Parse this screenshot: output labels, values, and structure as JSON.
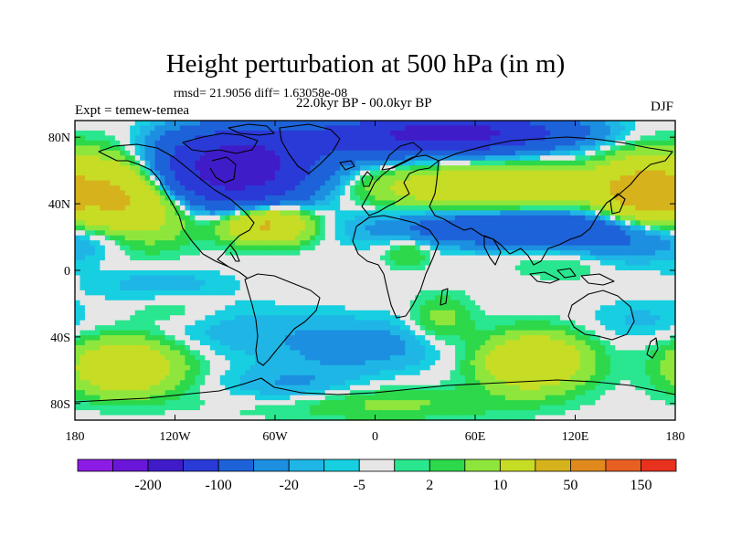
{
  "chart_data": {
    "type": "heatmap",
    "title": "Height perturbation at 500 hPa (in m)",
    "stats_text": "rmsd= 21.9056 diff= 1.63058e-08",
    "experiment_text": "Expt = temew-temea",
    "period_text": "22.0kyr BP - 00.0kyr BP",
    "season": "DJF",
    "xlim": [
      -180,
      180
    ],
    "ylim": [
      -90,
      90
    ],
    "x_ticks": [
      {
        "value": -180,
        "label": "180"
      },
      {
        "value": -120,
        "label": "120W"
      },
      {
        "value": -60,
        "label": "60W"
      },
      {
        "value": 0,
        "label": "0"
      },
      {
        "value": 60,
        "label": "60E"
      },
      {
        "value": 120,
        "label": "120E"
      },
      {
        "value": 180,
        "label": "180"
      }
    ],
    "y_ticks": [
      {
        "value": 80,
        "label": "80N"
      },
      {
        "value": 40,
        "label": "40N"
      },
      {
        "value": 0,
        "label": "0"
      },
      {
        "value": -40,
        "label": "40S"
      },
      {
        "value": -80,
        "label": "80S"
      }
    ],
    "colorbar": {
      "colors": [
        "#8c1be6",
        "#6a16d8",
        "#3f1cc8",
        "#2a3ad6",
        "#1d62d8",
        "#1c8fe0",
        "#1fb6e6",
        "#17cfe0",
        "#e6e6e6",
        "#29e68f",
        "#2dd84a",
        "#8ee63c",
        "#c7dc24",
        "#d6b21c",
        "#e08a1e",
        "#e85f24",
        "#e8321e"
      ],
      "labels": [
        {
          "after_index": 1,
          "text": "-200"
        },
        {
          "after_index": 3,
          "text": "-100"
        },
        {
          "after_index": 5,
          "text": "-20"
        },
        {
          "after_index": 7,
          "text": "-5"
        },
        {
          "after_index": 9,
          "text": "2"
        },
        {
          "after_index": 11,
          "text": "10"
        },
        {
          "after_index": 13,
          "text": "50"
        },
        {
          "after_index": 15,
          "text": "150"
        }
      ]
    },
    "field_blobs": [
      {
        "lon": -150,
        "lat": 45,
        "rlon": 38,
        "rlat": 25,
        "amp": 60
      },
      {
        "lon": 160,
        "lat": 45,
        "rlon": 25,
        "rlat": 22,
        "amp": 55
      },
      {
        "lon": -85,
        "lat": 60,
        "rlon": 45,
        "rlat": 20,
        "amp": -140
      },
      {
        "lon": -20,
        "lat": 78,
        "rlon": 80,
        "rlat": 12,
        "amp": -40
      },
      {
        "lon": 50,
        "lat": 83,
        "rlon": 60,
        "rlat": 10,
        "amp": -110
      },
      {
        "lon": -65,
        "lat": 28,
        "rlon": 25,
        "rlat": 11,
        "amp": 60
      },
      {
        "lon": 75,
        "lat": 50,
        "rlon": 75,
        "rlat": 12,
        "amp": 45
      },
      {
        "lon": 80,
        "lat": 25,
        "rlon": 70,
        "rlat": 10,
        "amp": -45
      },
      {
        "lon": 150,
        "lat": 20,
        "rlon": 40,
        "rlat": 15,
        "amp": -25
      },
      {
        "lon": -165,
        "lat": 18,
        "rlon": 25,
        "rlat": 12,
        "amp": -10
      },
      {
        "lon": -130,
        "lat": -8,
        "rlon": 40,
        "rlat": 10,
        "amp": -8
      },
      {
        "lon": -90,
        "lat": -35,
        "rlon": 50,
        "rlat": 15,
        "amp": -7
      },
      {
        "lon": -10,
        "lat": -45,
        "rlon": 50,
        "rlat": 15,
        "amp": -15
      },
      {
        "lon": 40,
        "lat": -30,
        "rlon": 18,
        "rlat": 14,
        "amp": 14
      },
      {
        "lon": -150,
        "lat": -58,
        "rlon": 32,
        "rlat": 16,
        "amp": 45
      },
      {
        "lon": 95,
        "lat": -55,
        "rlon": 30,
        "rlat": 16,
        "amp": 50
      },
      {
        "lon": -50,
        "lat": -70,
        "rlon": 40,
        "rlat": 12,
        "amp": -12
      },
      {
        "lon": 20,
        "lat": 12,
        "rlon": 14,
        "rlat": 10,
        "amp": 12
      },
      {
        "lon": 115,
        "lat": 5,
        "rlon": 30,
        "rlat": 10,
        "amp": 8
      },
      {
        "lon": -120,
        "lat": -25,
        "rlon": 30,
        "rlat": 10,
        "amp": 6
      },
      {
        "lon": 160,
        "lat": -30,
        "rlon": 30,
        "rlat": 12,
        "amp": -6
      },
      {
        "lon": 0,
        "lat": -80,
        "rlon": 80,
        "rlat": 10,
        "amp": 12
      }
    ]
  }
}
